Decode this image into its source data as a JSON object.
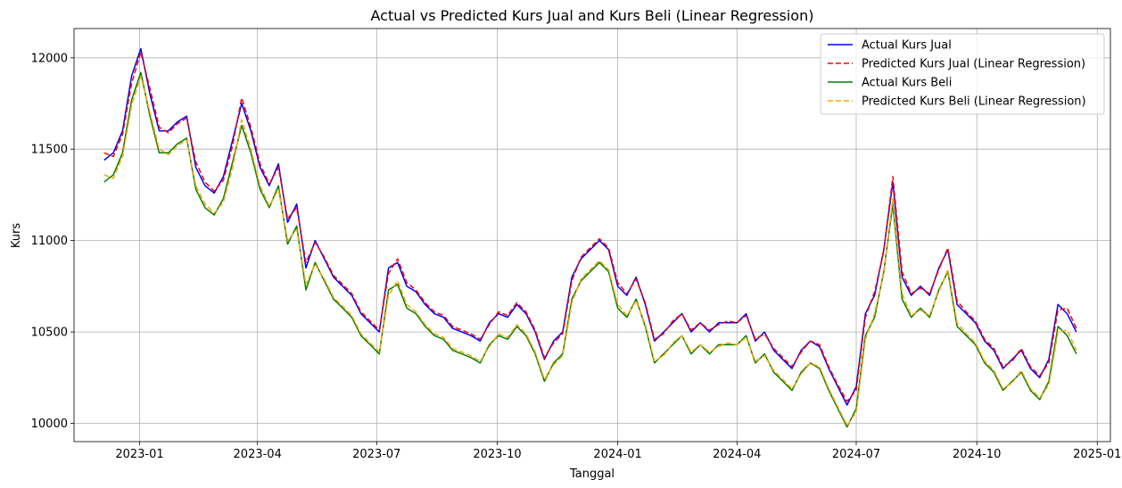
{
  "chart_data": {
    "type": "line",
    "title": "Actual vs Predicted Kurs Jual and Kurs Beli (Linear Regression)",
    "xlabel": "Tanggal",
    "ylabel": "Kurs",
    "ylim": [
      9900,
      12160
    ],
    "xlim": [
      "2022-11-12",
      "2025-01-11"
    ],
    "grid": true,
    "legend_position": "top-right",
    "x_ticks": [
      "2023-01-01",
      "2023-04-01",
      "2023-07-01",
      "2023-10-01",
      "2024-01-01",
      "2024-04-01",
      "2024-07-01",
      "2024-10-01",
      "2025-01-01"
    ],
    "x_tick_labels": [
      "2023-01",
      "2023-04",
      "2023-07",
      "2023-10",
      "2024-01",
      "2024-04",
      "2024-07",
      "2024-10",
      "2025-01"
    ],
    "y_ticks": [
      10000,
      10500,
      11000,
      11500,
      12000
    ],
    "y_tick_labels": [
      "10000",
      "10500",
      "11000",
      "11500",
      "12000"
    ],
    "x": [
      "2022-12-05",
      "2022-12-12",
      "2022-12-19",
      "2022-12-26",
      "2023-01-02",
      "2023-01-09",
      "2023-01-16",
      "2023-01-23",
      "2023-01-30",
      "2023-02-06",
      "2023-02-13",
      "2023-02-20",
      "2023-02-27",
      "2023-03-06",
      "2023-03-13",
      "2023-03-20",
      "2023-03-27",
      "2023-04-03",
      "2023-04-10",
      "2023-04-17",
      "2023-04-24",
      "2023-05-01",
      "2023-05-08",
      "2023-05-15",
      "2023-05-22",
      "2023-05-29",
      "2023-06-05",
      "2023-06-12",
      "2023-06-19",
      "2023-06-26",
      "2023-07-03",
      "2023-07-10",
      "2023-07-17",
      "2023-07-24",
      "2023-07-31",
      "2023-08-07",
      "2023-08-14",
      "2023-08-21",
      "2023-08-28",
      "2023-09-04",
      "2023-09-11",
      "2023-09-18",
      "2023-09-25",
      "2023-10-02",
      "2023-10-09",
      "2023-10-16",
      "2023-10-23",
      "2023-10-30",
      "2023-11-06",
      "2023-11-13",
      "2023-11-20",
      "2023-11-27",
      "2023-12-04",
      "2023-12-11",
      "2023-12-18",
      "2023-12-25",
      "2024-01-01",
      "2024-01-08",
      "2024-01-15",
      "2024-01-22",
      "2024-01-29",
      "2024-02-05",
      "2024-02-12",
      "2024-02-19",
      "2024-02-26",
      "2024-03-04",
      "2024-03-11",
      "2024-03-18",
      "2024-03-25",
      "2024-04-01",
      "2024-04-08",
      "2024-04-15",
      "2024-04-22",
      "2024-04-29",
      "2024-05-06",
      "2024-05-13",
      "2024-05-20",
      "2024-05-27",
      "2024-06-03",
      "2024-06-10",
      "2024-06-17",
      "2024-06-24",
      "2024-07-01",
      "2024-07-08",
      "2024-07-15",
      "2024-07-22",
      "2024-07-29",
      "2024-08-05",
      "2024-08-12",
      "2024-08-19",
      "2024-08-26",
      "2024-09-02",
      "2024-09-09",
      "2024-09-16",
      "2024-09-23",
      "2024-09-30",
      "2024-10-07",
      "2024-10-14",
      "2024-10-21",
      "2024-10-28",
      "2024-11-04",
      "2024-11-11",
      "2024-11-18",
      "2024-11-25",
      "2024-12-02",
      "2024-12-09",
      "2024-12-16"
    ],
    "series": [
      {
        "name": "Actual Kurs Jual",
        "color": "#0000ff",
        "style": "solid",
        "values": [
          11440,
          11480,
          11600,
          11900,
          12050,
          11800,
          11600,
          11600,
          11650,
          11680,
          11400,
          11300,
          11260,
          11350,
          11550,
          11750,
          11600,
          11400,
          11300,
          11420,
          11100,
          11200,
          10850,
          11000,
          10900,
          10800,
          10750,
          10700,
          10600,
          10550,
          10500,
          10850,
          10880,
          10750,
          10720,
          10650,
          10600,
          10580,
          10520,
          10500,
          10480,
          10450,
          10550,
          10600,
          10580,
          10650,
          10600,
          10500,
          10350,
          10450,
          10500,
          10800,
          10900,
          10950,
          11000,
          10950,
          10750,
          10700,
          10800,
          10650,
          10450,
          10500,
          10550,
          10600,
          10500,
          10550,
          10500,
          10550,
          10550,
          10550,
          10600,
          10450,
          10500,
          10400,
          10350,
          10300,
          10400,
          10450,
          10420,
          10300,
          10200,
          10100,
          10200,
          10600,
          10700,
          10950,
          11320,
          10800,
          10700,
          10750,
          10700,
          10850,
          10950,
          10650,
          10600,
          10550,
          10450,
          10400,
          10300,
          10350,
          10400,
          10300,
          10250,
          10350,
          10650,
          10600,
          10500
        ]
      },
      {
        "name": "Predicted Kurs Jual (Linear Regression)",
        "color": "#ff0000",
        "style": "dashed",
        "values": [
          11480,
          11460,
          11580,
          11860,
          12030,
          11830,
          11620,
          11590,
          11640,
          11670,
          11430,
          11320,
          11270,
          11330,
          11520,
          11780,
          11620,
          11420,
          11310,
          11400,
          11120,
          11180,
          10880,
          10990,
          10910,
          10810,
          10760,
          10710,
          10610,
          10560,
          10510,
          10820,
          10900,
          10770,
          10730,
          10660,
          10610,
          10590,
          10530,
          10510,
          10490,
          10460,
          10540,
          10610,
          10590,
          10660,
          10610,
          10510,
          10360,
          10440,
          10490,
          10780,
          10910,
          10960,
          11010,
          10960,
          10770,
          10710,
          10790,
          10660,
          10460,
          10490,
          10560,
          10600,
          10510,
          10550,
          10510,
          10540,
          10560,
          10550,
          10590,
          10460,
          10490,
          10410,
          10360,
          10310,
          10390,
          10450,
          10430,
          10310,
          10210,
          10120,
          10180,
          10580,
          10720,
          10940,
          11350,
          10830,
          10710,
          10740,
          10710,
          10840,
          10960,
          10670,
          10610,
          10560,
          10460,
          10410,
          10310,
          10340,
          10410,
          10310,
          10260,
          10330,
          10620,
          10630,
          10520
        ]
      },
      {
        "name": "Actual Kurs Beli",
        "color": "#008000",
        "style": "solid",
        "values": [
          11320,
          11360,
          11480,
          11770,
          11920,
          11680,
          11480,
          11480,
          11530,
          11560,
          11280,
          11180,
          11140,
          11230,
          11430,
          11630,
          11480,
          11280,
          11180,
          11300,
          10980,
          11080,
          10730,
          10880,
          10780,
          10680,
          10630,
          10580,
          10480,
          10430,
          10380,
          10730,
          10760,
          10630,
          10600,
          10530,
          10480,
          10460,
          10400,
          10380,
          10360,
          10330,
          10430,
          10480,
          10460,
          10530,
          10480,
          10380,
          10230,
          10330,
          10380,
          10680,
          10780,
          10830,
          10880,
          10830,
          10630,
          10580,
          10680,
          10530,
          10330,
          10380,
          10430,
          10480,
          10380,
          10430,
          10380,
          10430,
          10430,
          10430,
          10480,
          10330,
          10380,
          10280,
          10230,
          10180,
          10280,
          10330,
          10300,
          10180,
          10080,
          9980,
          10080,
          10480,
          10580,
          10830,
          11200,
          10680,
          10580,
          10630,
          10580,
          10730,
          10830,
          10530,
          10480,
          10430,
          10330,
          10280,
          10180,
          10230,
          10280,
          10180,
          10130,
          10230,
          10530,
          10480,
          10380
        ]
      },
      {
        "name": "Predicted Kurs Beli (Linear Regression)",
        "color": "#ffa500",
        "style": "dashed",
        "values": [
          11360,
          11340,
          11460,
          11740,
          11900,
          11700,
          11500,
          11470,
          11520,
          11550,
          11300,
          11200,
          11150,
          11210,
          11400,
          11660,
          11500,
          11300,
          11190,
          11280,
          11000,
          11060,
          10760,
          10870,
          10790,
          10690,
          10640,
          10590,
          10490,
          10440,
          10390,
          10700,
          10780,
          10650,
          10610,
          10540,
          10490,
          10470,
          10410,
          10390,
          10370,
          10340,
          10420,
          10490,
          10470,
          10540,
          10490,
          10390,
          10240,
          10320,
          10370,
          10660,
          10790,
          10840,
          10890,
          10840,
          10650,
          10590,
          10670,
          10540,
          10340,
          10370,
          10440,
          10480,
          10390,
          10430,
          10390,
          10420,
          10440,
          10430,
          10470,
          10340,
          10370,
          10290,
          10240,
          10190,
          10270,
          10330,
          10310,
          10190,
          10090,
          9990,
          10060,
          10460,
          10600,
          10820,
          11230,
          10710,
          10590,
          10620,
          10590,
          10720,
          10840,
          10550,
          10490,
          10440,
          10340,
          10290,
          10190,
          10220,
          10290,
          10190,
          10140,
          10210,
          10500,
          10510,
          10400
        ]
      }
    ]
  }
}
